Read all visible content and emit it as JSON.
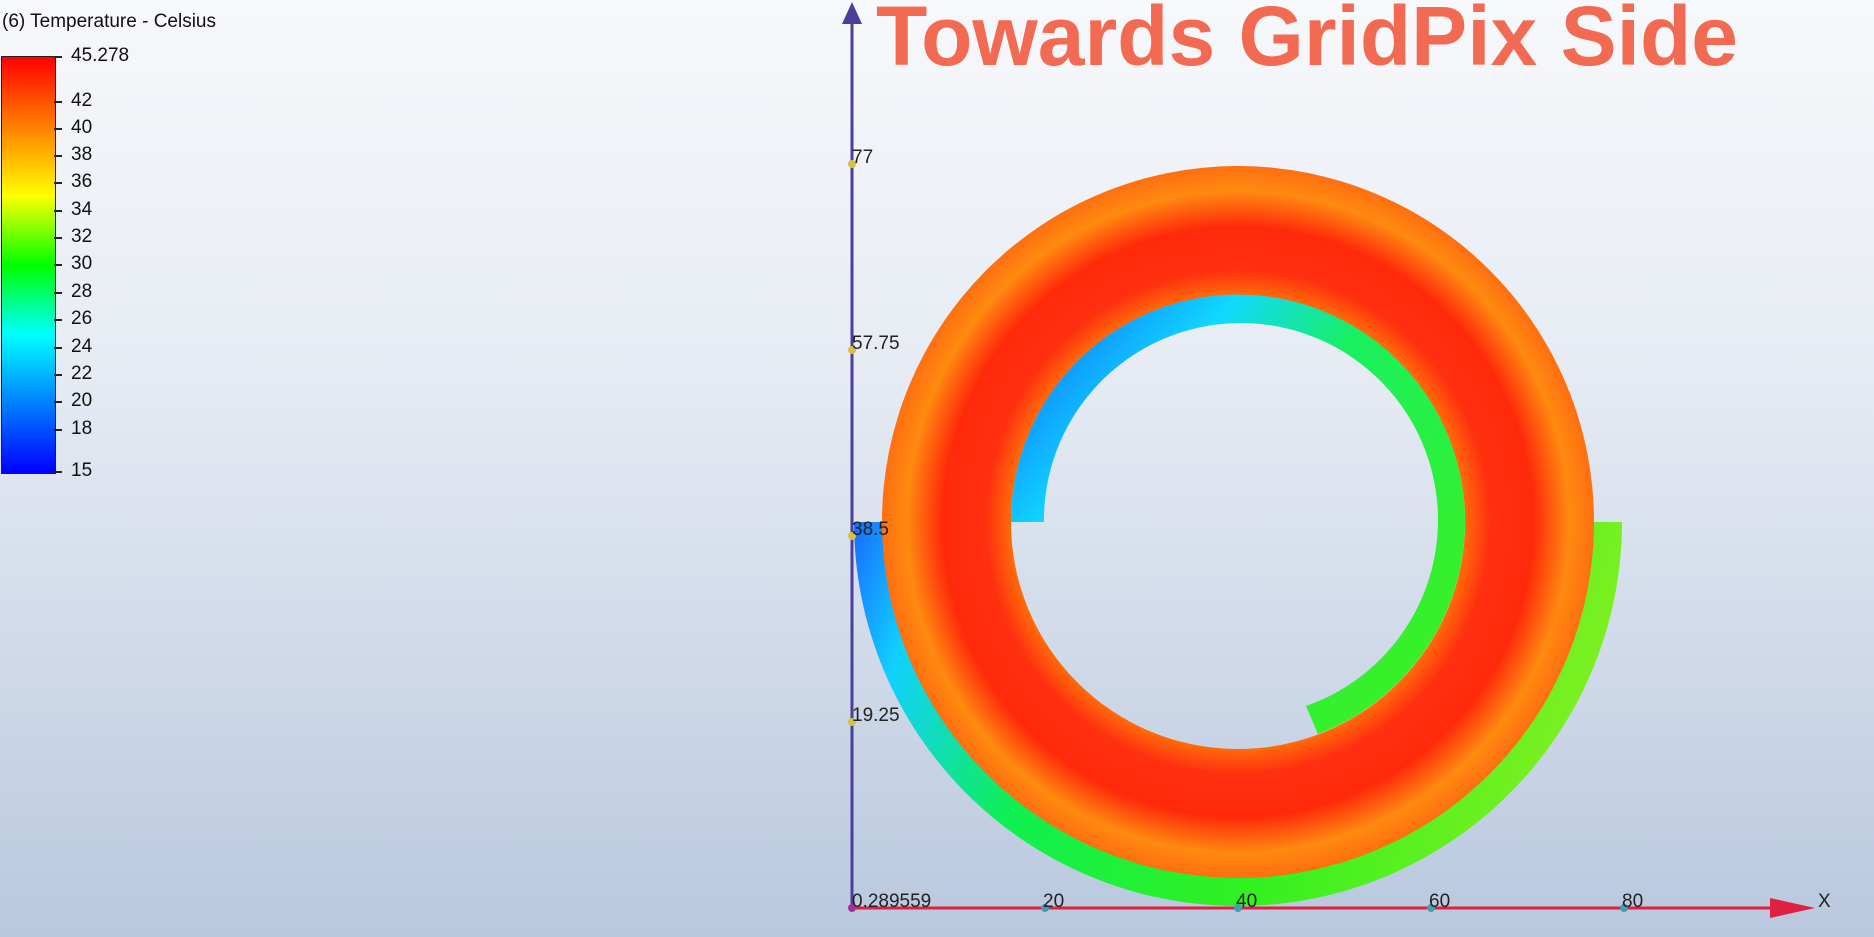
{
  "legend": {
    "title": "(6) Temperature - Celsius",
    "min": 15,
    "max": 45.278,
    "labels": [
      "45.278",
      "42",
      "40",
      "38",
      "36",
      "34",
      "32",
      "30",
      "28",
      "26",
      "24",
      "22",
      "20",
      "18",
      "15"
    ],
    "gradient_colors": [
      "#ff0000",
      "#ff7f00",
      "#ffff00",
      "#00ff00",
      "#00ffff",
      "#0080ff",
      "#0000ff"
    ]
  },
  "banner": {
    "text": "Towards GridPix Side"
  },
  "axes": {
    "y_ticks": [
      "77",
      "57.75",
      "38.5",
      "19.25"
    ],
    "x_ticks": [
      "20",
      "40",
      "60",
      "80"
    ],
    "origin_label": "0.289559",
    "x_axis_name": "X",
    "y_axis_color": "#4a3f9a",
    "x_axis_color": "#e02040"
  },
  "colors": {
    "banner": "#f26a52",
    "outer_ring_hot": "#ff2a0a",
    "inner_ring_cool": "#2ae81a",
    "inner_ring_cold": "#10b8ff"
  }
}
